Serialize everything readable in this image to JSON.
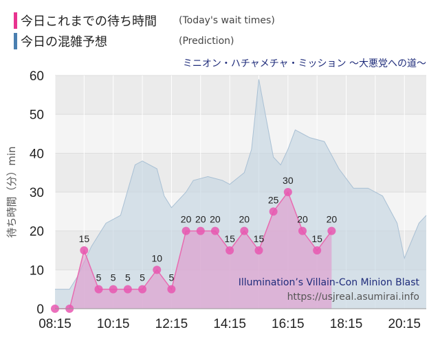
{
  "legend": [
    {
      "label": "今日これまでの待ち時間",
      "sub": "(Today's wait times)",
      "color": "#e8338f"
    },
    {
      "label": "今日の混雑予想",
      "sub": "(Prediction)",
      "color": "#4a7fb0"
    }
  ],
  "attribution": {
    "name": "Illumination’s Villain-Con Minion Blast",
    "url": "https://usjreal.asumirai.info"
  },
  "chart_data": {
    "type": "area",
    "title": "ミニオン・ハチャメチャ・ミッション ～大悪党への道～",
    "ylabel": "待ち時間（分）min",
    "xlabel": "",
    "ylim": [
      0,
      60
    ],
    "yticks": [
      0,
      10,
      20,
      30,
      40,
      50,
      60
    ],
    "xlim": [
      "08:15",
      "21:00"
    ],
    "xticks": [
      "08:15",
      "10:15",
      "12:15",
      "14:15",
      "16:15",
      "18:15",
      "20:15"
    ],
    "grid": true,
    "series": [
      {
        "key": "prediction",
        "color": "#a9c0d4",
        "points": [
          [
            "08:15",
            5
          ],
          [
            "08:45",
            5
          ],
          [
            "09:00",
            8
          ],
          [
            "09:30",
            16
          ],
          [
            "10:00",
            22
          ],
          [
            "10:30",
            24
          ],
          [
            "11:00",
            37
          ],
          [
            "11:15",
            38
          ],
          [
            "11:45",
            36
          ],
          [
            "12:00",
            29
          ],
          [
            "12:15",
            26
          ],
          [
            "12:45",
            30
          ],
          [
            "13:00",
            33
          ],
          [
            "13:30",
            34
          ],
          [
            "14:00",
            33
          ],
          [
            "14:15",
            32
          ],
          [
            "14:45",
            35
          ],
          [
            "15:00",
            41
          ],
          [
            "15:15",
            59
          ],
          [
            "15:45",
            39
          ],
          [
            "16:00",
            37
          ],
          [
            "16:15",
            41
          ],
          [
            "16:30",
            46
          ],
          [
            "16:45",
            45
          ],
          [
            "17:00",
            44
          ],
          [
            "17:30",
            43
          ],
          [
            "18:00",
            36
          ],
          [
            "18:30",
            31
          ],
          [
            "19:00",
            31
          ],
          [
            "19:30",
            29
          ],
          [
            "20:00",
            22
          ],
          [
            "20:15",
            13
          ],
          [
            "20:45",
            22
          ],
          [
            "21:00",
            24
          ]
        ]
      },
      {
        "key": "today",
        "color": "#e8338f",
        "points": [
          [
            "08:15",
            0
          ],
          [
            "08:45",
            0
          ],
          [
            "09:15",
            15
          ],
          [
            "09:45",
            5
          ],
          [
            "10:15",
            5
          ],
          [
            "10:45",
            5
          ],
          [
            "11:15",
            5
          ],
          [
            "11:45",
            10
          ],
          [
            "12:15",
            5
          ],
          [
            "12:45",
            20
          ],
          [
            "13:15",
            20
          ],
          [
            "13:45",
            20
          ],
          [
            "14:15",
            15
          ],
          [
            "14:45",
            20
          ],
          [
            "15:15",
            15
          ],
          [
            "15:45",
            25
          ],
          [
            "16:15",
            30
          ],
          [
            "16:45",
            20
          ],
          [
            "17:15",
            15
          ],
          [
            "17:45",
            20
          ]
        ],
        "labels": [
          false,
          false,
          true,
          true,
          true,
          true,
          true,
          true,
          true,
          true,
          true,
          true,
          true,
          true,
          true,
          true,
          true,
          true,
          true,
          true
        ]
      }
    ]
  }
}
